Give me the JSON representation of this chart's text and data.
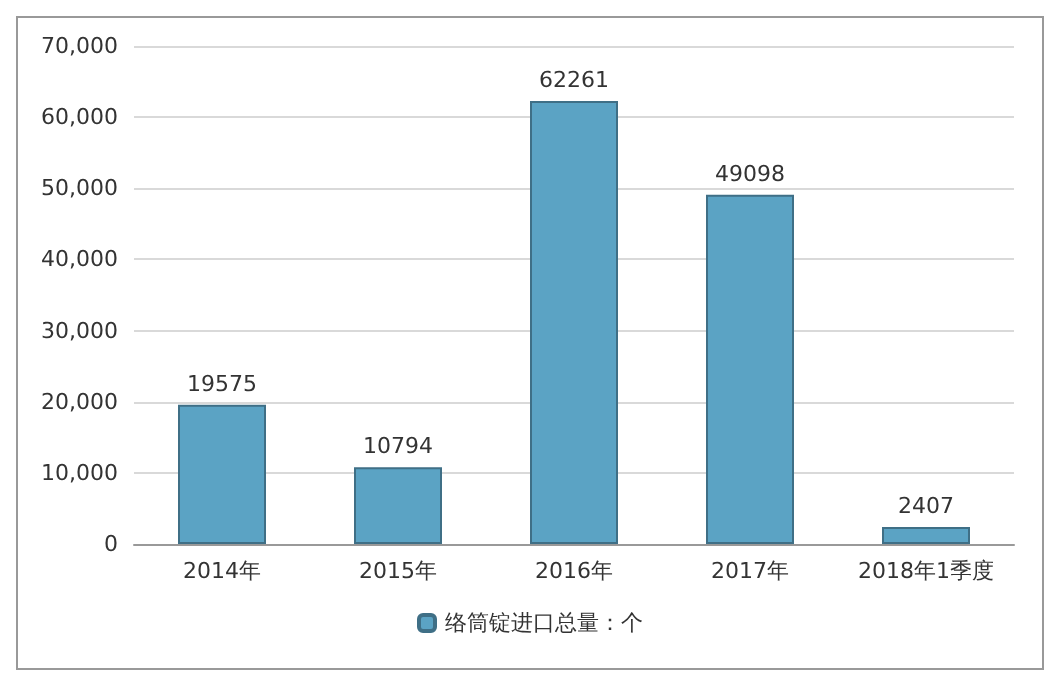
{
  "chart_data": {
    "type": "bar",
    "categories": [
      "2014年",
      "2015年",
      "2016年",
      "2017年",
      "2018年1季度"
    ],
    "series": [
      {
        "name": "络筒锭进口总量：个",
        "color": "#5ba3c4",
        "values": [
          19575,
          10794,
          62261,
          49098,
          2407
        ]
      }
    ],
    "ylim": [
      0,
      70000
    ],
    "yticks": [
      0,
      {
        "value": 10000,
        "label": "10,000"
      },
      {
        "value": 20000,
        "label": "20,000"
      },
      {
        "value": 30000,
        "label": "30,000"
      },
      {
        "value": 40000,
        "label": "40,000"
      },
      {
        "value": 50000,
        "label": "50,000"
      },
      {
        "value": 60000,
        "label": "60,000"
      },
      {
        "value": 70000,
        "label": "70,000"
      }
    ],
    "grid": "y",
    "legend": "bottom",
    "data_labels": true
  }
}
